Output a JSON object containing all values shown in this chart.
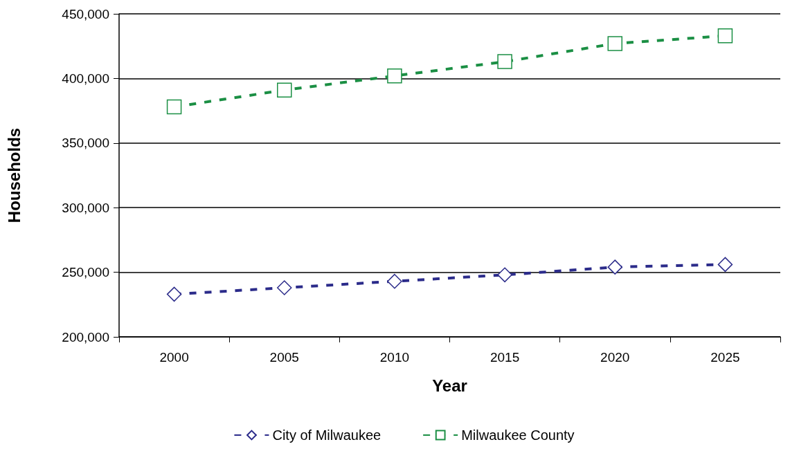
{
  "chart_data": {
    "type": "line",
    "xlabel": "Year",
    "ylabel": "Households",
    "categories": [
      "2000",
      "2005",
      "2010",
      "2015",
      "2020",
      "2025"
    ],
    "series": [
      {
        "name": "City of Milwaukee",
        "color": "#2b2b8a",
        "marker": "diamond",
        "values": [
          233000,
          238000,
          243000,
          248000,
          254000,
          256000
        ]
      },
      {
        "name": "Milwaukee County",
        "color": "#1b8f44",
        "marker": "square",
        "values": [
          378000,
          391000,
          402000,
          413000,
          427000,
          433000
        ]
      }
    ],
    "ylim": [
      200000,
      450000
    ],
    "yticks": [
      {
        "value": 200000,
        "label": "200,000"
      },
      {
        "value": 250000,
        "label": "250,000"
      },
      {
        "value": 300000,
        "label": "300,000"
      },
      {
        "value": 350000,
        "label": "350,000"
      },
      {
        "value": 400000,
        "label": "400,000"
      },
      {
        "value": 450000,
        "label": "450,000"
      }
    ],
    "grid": "y",
    "legend": "bottom",
    "line_style": "dashed"
  }
}
